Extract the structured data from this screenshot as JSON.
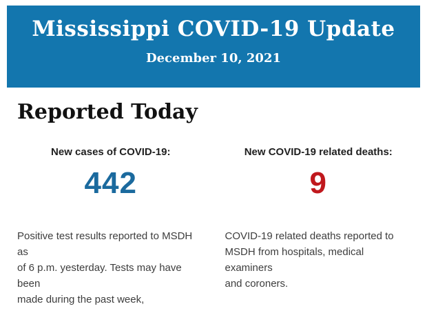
{
  "colors": {
    "page_background": "#ffffff",
    "banner_background": "#1376ae",
    "banner_text": "#ffffff",
    "cases_value": "#1b6a9e",
    "deaths_value": "#c0181d"
  },
  "header": {
    "title": "Mississippi COVID-19 Update",
    "date": "December 10, 2021"
  },
  "section": {
    "heading": "Reported Today"
  },
  "stats": [
    {
      "label": "New cases of COVID-19:",
      "value": "442",
      "value_color": "#1b6a9e",
      "description": "Positive test results reported to MSDH as\nof 6 p.m. yesterday. Tests may have been\nmade during the past week,"
    },
    {
      "label": "New COVID-19 related deaths:",
      "value": "9",
      "value_color": "#c0181d",
      "description": "COVID-19 related deaths reported to\nMSDH from hospitals, medical examiners\nand coroners."
    }
  ]
}
